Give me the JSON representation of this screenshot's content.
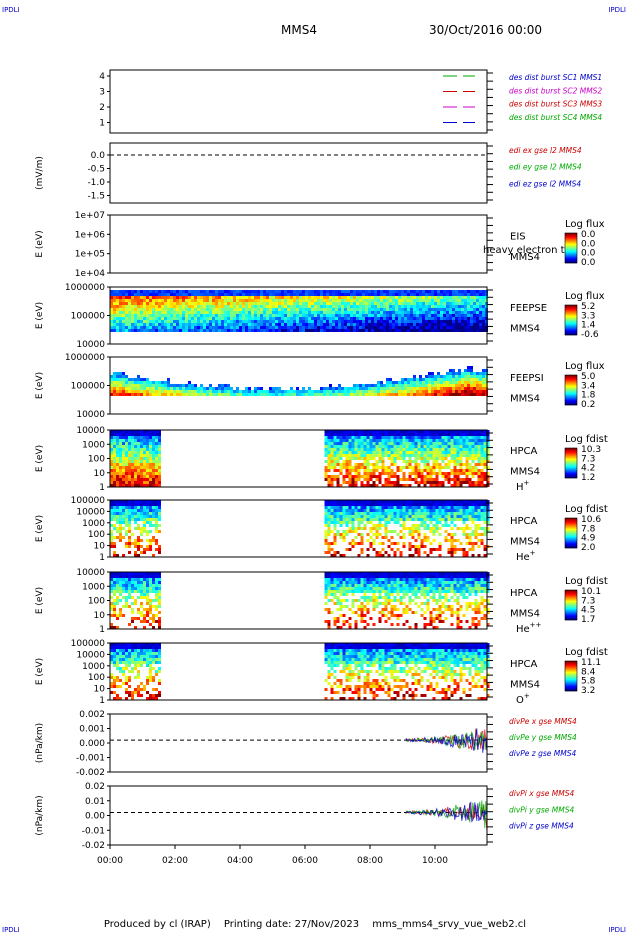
{
  "header": {
    "corner_left": "IPDLI",
    "corner_right": "IPDLI",
    "title": "MMS4",
    "datetime": "30/Oct/2016 00:00"
  },
  "footer": {
    "produced": "Produced by cl (IRAP)",
    "printing": "Printing date: 27/Nov/2023",
    "script": "mms_mms4_srvy_vue_web2.cl"
  },
  "colors": {
    "mms1": "#00aa00",
    "mms2": "#cc0000",
    "mms3": "#cc00cc",
    "mms4": "#0000cc",
    "x": "#cc0000",
    "y": "#00aa00",
    "z": "#0000cc"
  },
  "chart_data": {
    "type": "multi-panel time series",
    "x_ticks": [
      "00:00",
      "02:00",
      "04:00",
      "06:00",
      "08:00",
      "10:00"
    ],
    "x_range_hours": [
      0,
      11.6
    ],
    "panels": [
      {
        "id": "dist-burst",
        "kind": "line",
        "ylabel": "",
        "yticks": [
          "4",
          "3",
          "2",
          "1"
        ],
        "legend": [
          {
            "text": "des dist burst SC1 MMS1",
            "color": "#0000cc"
          },
          {
            "text": "des dist burst SC2 MMS2",
            "color": "#cc00cc"
          },
          {
            "text": "des dist burst SC3 MMS3",
            "color": "#cc0000"
          },
          {
            "text": "des dist burst SC4 MMS4",
            "color": "#00aa00"
          }
        ],
        "series": [
          {
            "level": 4,
            "color": "#00aa00"
          },
          {
            "level": 3,
            "color": "#cc0000"
          },
          {
            "level": 2,
            "color": "#cc00cc"
          },
          {
            "level": 1,
            "color": "#0000cc"
          }
        ]
      },
      {
        "id": "edi",
        "kind": "line",
        "ylabel": "(mV/m)",
        "yticks": [
          "0.0",
          "-0.5",
          "-1.0",
          "-1.5"
        ],
        "legend": [
          {
            "text": "edi ex gse l2 MMS4",
            "color": "#cc0000"
          },
          {
            "text": "edi ey gse l2 MMS4",
            "color": "#00aa00"
          },
          {
            "text": "edi ez gse l2 MMS4",
            "color": "#0000cc"
          }
        ]
      },
      {
        "id": "eis",
        "kind": "spectrogram",
        "ylabel": "E (eV)",
        "yticks": [
          "1e+07",
          "1e+06",
          "1e+05",
          "1e+04"
        ],
        "side": [
          "EIS",
          "MMS4"
        ],
        "overlay_text": "heavy electron to",
        "cb_title": "Log flux",
        "cb_values": [
          "0.0",
          "0.0",
          "0.0",
          "0.0"
        ],
        "coverage": []
      },
      {
        "id": "feepse",
        "kind": "spectrogram",
        "ylabel": "E (eV)",
        "yticks": [
          "1000000",
          "100000",
          "10000"
        ],
        "side": [
          "FEEPSE",
          "MMS4"
        ],
        "cb_title": "Log flux",
        "cb_values": [
          "5.2",
          "3.3",
          "1.4",
          "-0.6"
        ],
        "coverage": [
          [
            0,
            11.6
          ]
        ]
      },
      {
        "id": "feepsi",
        "kind": "spectrogram",
        "ylabel": "E (eV)",
        "yticks": [
          "1000000",
          "100000",
          "10000"
        ],
        "side": [
          "FEEPSI",
          "MMS4"
        ],
        "cb_title": "Log flux",
        "cb_values": [
          "5.0",
          "3.4",
          "1.8",
          "0.2"
        ],
        "coverage": [
          [
            0,
            11.6
          ]
        ]
      },
      {
        "id": "hpca-h",
        "kind": "spectrogram",
        "ylabel": "E (eV)",
        "yticks": [
          "10000",
          "1000",
          "100",
          "10",
          "1"
        ],
        "side": [
          "HPCA",
          "MMS4"
        ],
        "species": "H",
        "species_sup": "+",
        "cb_title": "Log fdist",
        "cb_values": [
          "10.3",
          "7.3",
          "4.2",
          "1.2"
        ],
        "coverage": [
          [
            0,
            1.5
          ],
          [
            6.6,
            11.6
          ]
        ]
      },
      {
        "id": "hpca-he",
        "kind": "spectrogram",
        "ylabel": "E (eV)",
        "yticks": [
          "100000",
          "10000",
          "1000",
          "100",
          "10",
          "1"
        ],
        "side": [
          "HPCA",
          "MMS4"
        ],
        "species": "He",
        "species_sup": "+",
        "cb_title": "Log fdist",
        "cb_values": [
          "10.6",
          "7.8",
          "4.9",
          "2.0"
        ],
        "coverage": [
          [
            0,
            1.5
          ],
          [
            6.6,
            11.6
          ]
        ]
      },
      {
        "id": "hpca-he2",
        "kind": "spectrogram",
        "ylabel": "E (eV)",
        "yticks": [
          "10000",
          "1000",
          "100",
          "10",
          "1"
        ],
        "side": [
          "HPCA",
          "MMS4"
        ],
        "species": "He",
        "species_sup": "++",
        "cb_title": "Log fdist",
        "cb_values": [
          "10.1",
          "7.3",
          "4.5",
          "1.7"
        ],
        "coverage": [
          [
            0,
            1.5
          ],
          [
            6.6,
            11.6
          ]
        ]
      },
      {
        "id": "hpca-o",
        "kind": "spectrogram",
        "ylabel": "E (eV)",
        "yticks": [
          "100000",
          "10000",
          "1000",
          "100",
          "10",
          "1"
        ],
        "side": [
          "HPCA",
          "MMS4"
        ],
        "species": "O",
        "species_sup": "+",
        "cb_title": "Log fdist",
        "cb_values": [
          "11.1",
          "8.4",
          "5.8",
          "3.2"
        ],
        "coverage": [
          [
            0,
            1.5
          ],
          [
            6.6,
            11.6
          ]
        ]
      },
      {
        "id": "divpe",
        "kind": "line",
        "ylabel": "(nPa/km)",
        "yticks": [
          "0.002",
          "0.001",
          "0.000",
          "-0.001",
          "-0.002"
        ],
        "legend": [
          {
            "text": "divPe x gse MMS4",
            "color": "#cc0000"
          },
          {
            "text": "divPe y gse MMS4",
            "color": "#00aa00"
          },
          {
            "text": "divPe z gse MMS4",
            "color": "#0000cc"
          }
        ],
        "coverage": [
          [
            9.1,
            11.6
          ]
        ]
      },
      {
        "id": "divpi",
        "kind": "line",
        "ylabel": "(nPa/km)",
        "yticks": [
          "0.02",
          "0.01",
          "0.00",
          "-0.01",
          "-0.02"
        ],
        "legend": [
          {
            "text": "divPi x gse MMS4",
            "color": "#cc0000"
          },
          {
            "text": "divPi y gse MMS4",
            "color": "#00aa00"
          },
          {
            "text": "divPi z gse MMS4",
            "color": "#0000cc"
          }
        ],
        "coverage": [
          [
            9.1,
            11.6
          ]
        ]
      }
    ]
  }
}
